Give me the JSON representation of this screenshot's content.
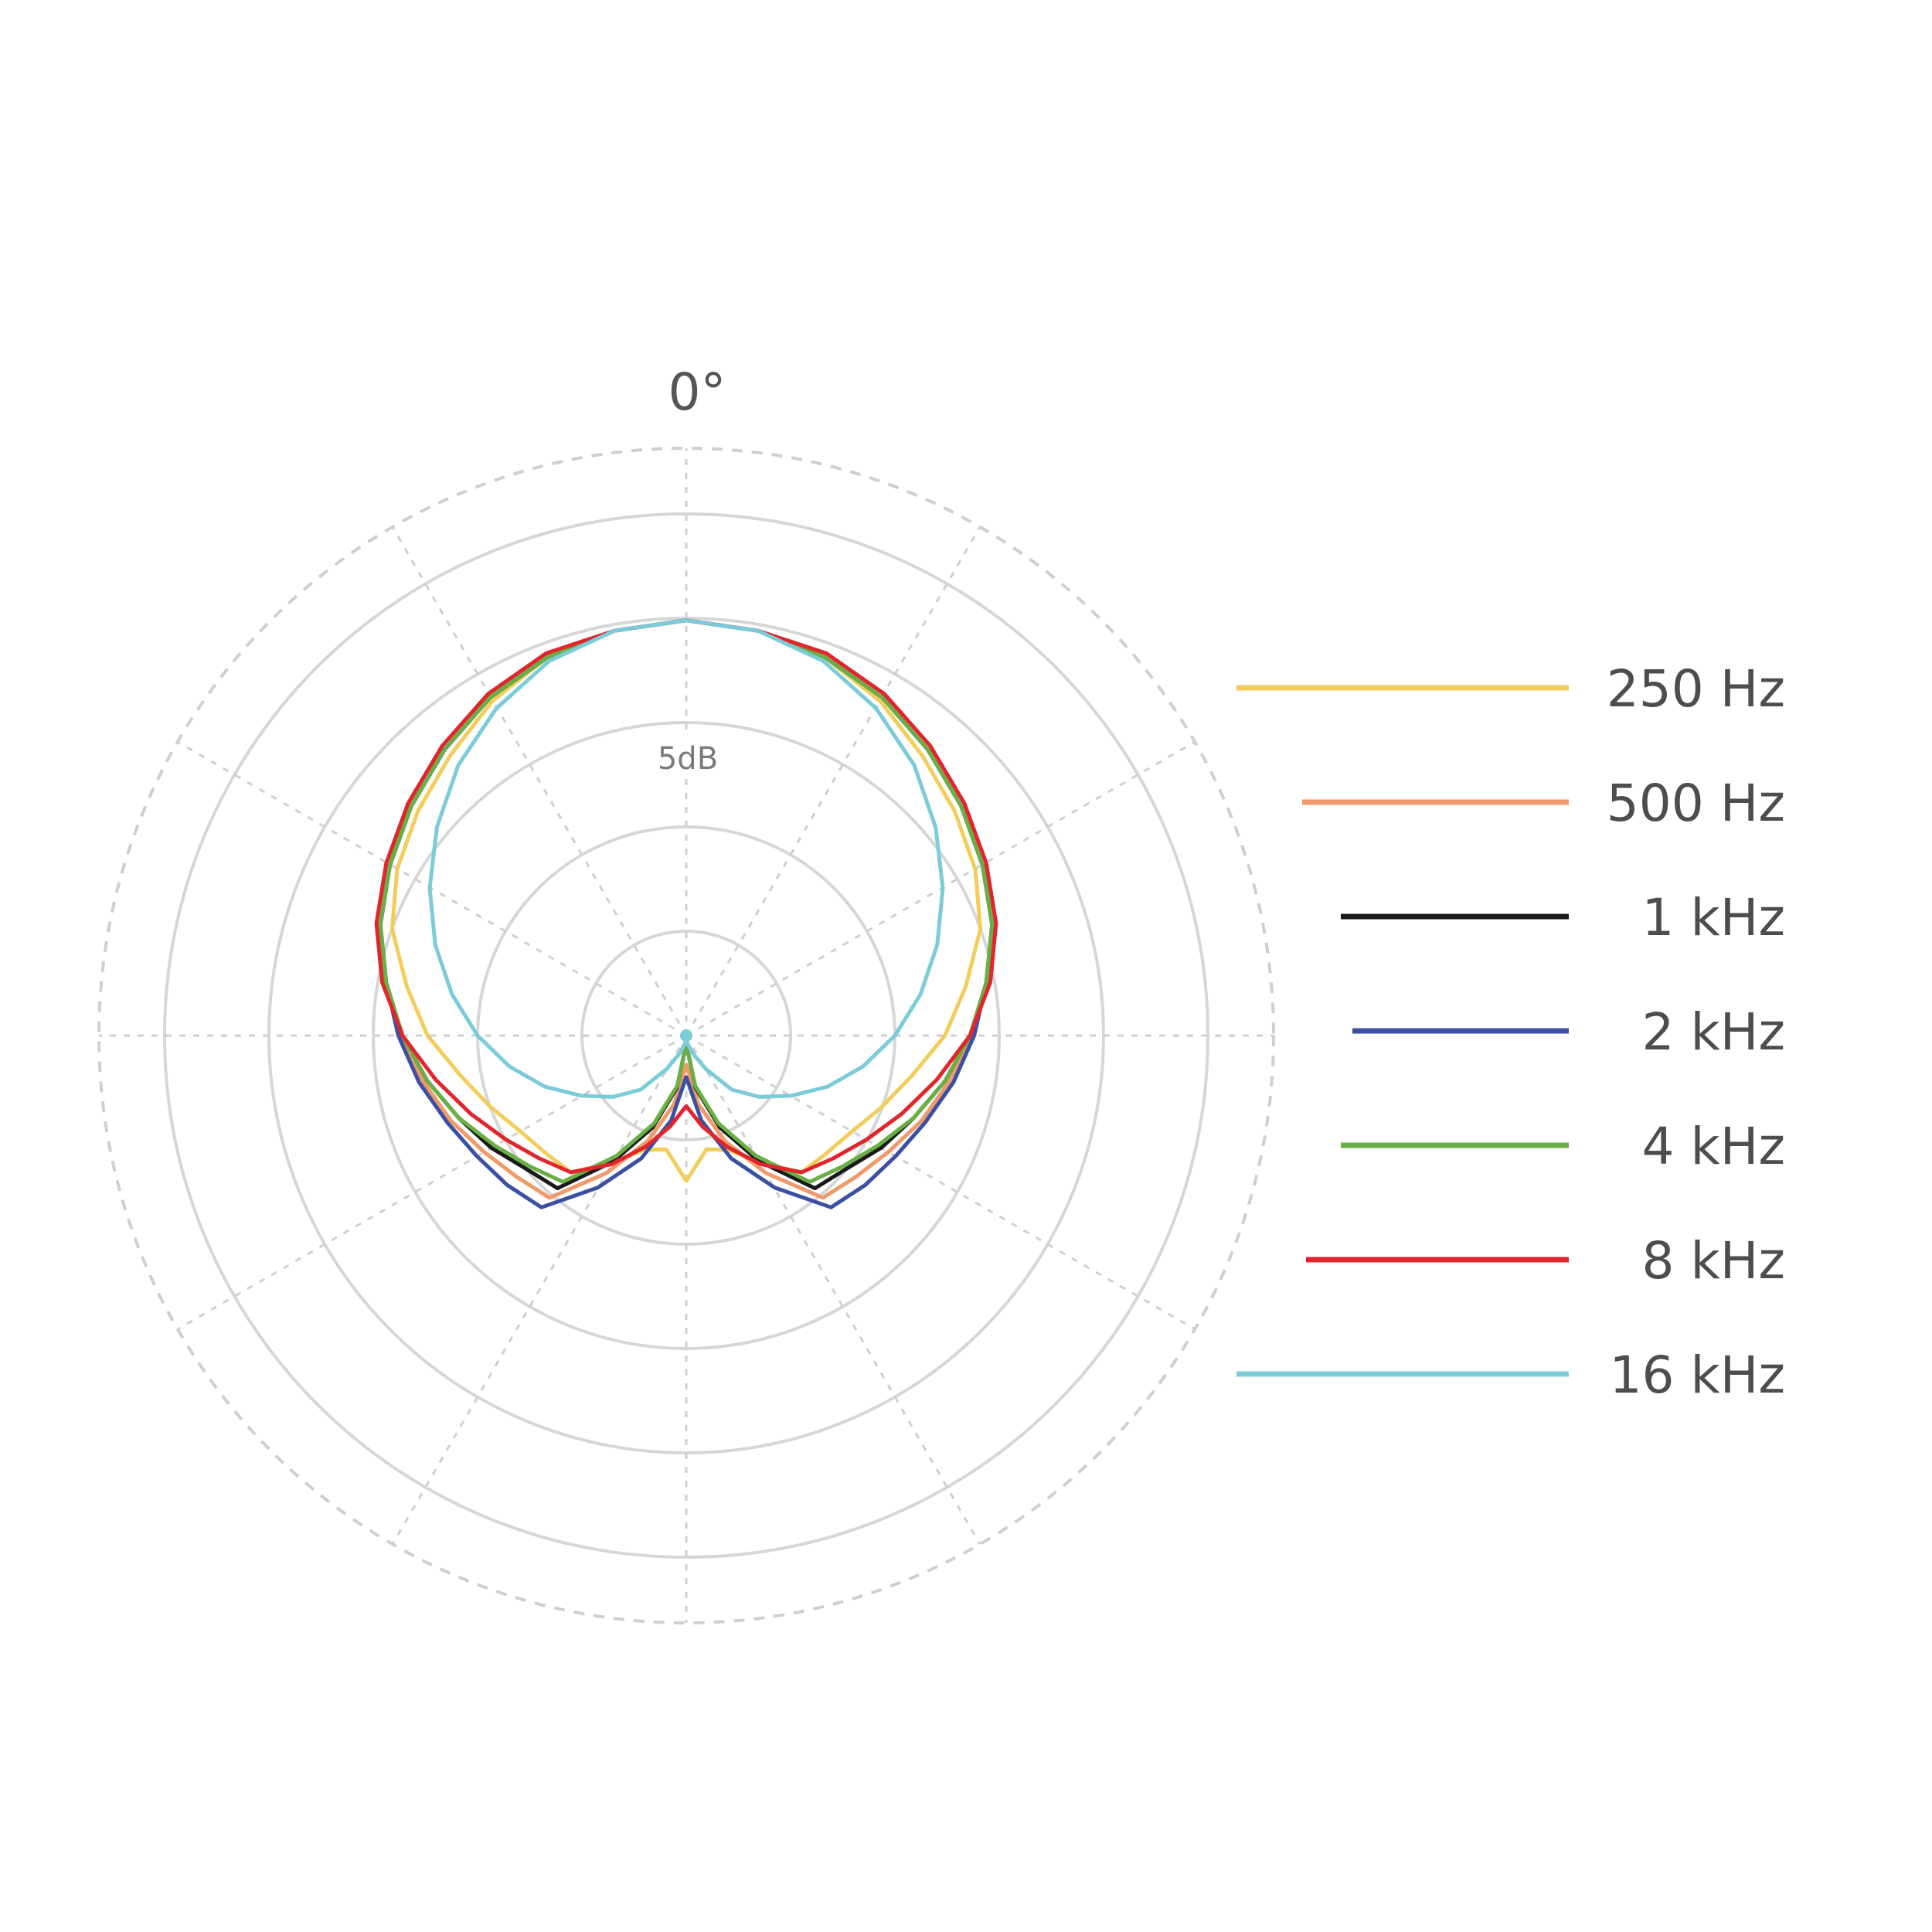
{
  "chart_data": {
    "type": "polar",
    "angle_label": "0°",
    "db_label": "5dB",
    "angle_unit": "degrees",
    "grid": true,
    "legend_placement": "right",
    "series": [
      {
        "name": "250 Hz",
        "color": "#f2cd5c",
        "r": [
          1.0,
          0.99,
          0.97,
          0.93,
          0.88,
          0.84,
          0.8,
          0.75,
          0.68,
          0.62,
          0.55,
          0.5,
          0.46,
          0.44,
          0.43,
          0.42,
          0.41,
          0.41,
          0.4,
          0.4,
          0.39,
          0.37,
          0.36,
          0.28,
          0.15,
          0.23,
          0.32,
          0.35
        ]
      },
      {
        "name": "500 Hz",
        "color": "#f0996a",
        "r": [
          1.0,
          0.99,
          0.97,
          0.94,
          0.9,
          0.86,
          0.82,
          0.78,
          0.73,
          0.69,
          0.64,
          0.6,
          0.56,
          0.53,
          0.51,
          0.49,
          0.48,
          0.48,
          0.47,
          0.46,
          0.44,
          0.41,
          0.37,
          0.3,
          0.2,
          0.1,
          0.06,
          0.07
        ]
      },
      {
        "name": "1 kHz",
        "color": "#1a1a1a",
        "r": [
          1.0,
          0.99,
          0.97,
          0.94,
          0.9,
          0.86,
          0.82,
          0.78,
          0.73,
          0.68,
          0.63,
          0.58,
          0.54,
          0.5,
          0.48,
          0.46,
          0.45,
          0.45,
          0.44,
          0.43,
          0.41,
          0.38,
          0.33,
          0.24,
          0.13,
          0.04,
          0.02,
          0.02
        ]
      },
      {
        "name": "2 kHz",
        "color": "#3b4fa3",
        "r": [
          1.0,
          0.99,
          0.97,
          0.94,
          0.9,
          0.86,
          0.82,
          0.78,
          0.73,
          0.69,
          0.65,
          0.61,
          0.58,
          0.56,
          0.54,
          0.53,
          0.53,
          0.53,
          0.52,
          0.51,
          0.48,
          0.44,
          0.38,
          0.3,
          0.2,
          0.12,
          0.1,
          0.1
        ]
      },
      {
        "name": "4 kHz",
        "color": "#6aaf44",
        "r": [
          1.0,
          0.99,
          0.97,
          0.94,
          0.9,
          0.86,
          0.82,
          0.78,
          0.73,
          0.68,
          0.63,
          0.58,
          0.53,
          0.49,
          0.46,
          0.44,
          0.43,
          0.43,
          0.42,
          0.41,
          0.39,
          0.35,
          0.29,
          0.21,
          0.11,
          0.03,
          0.02,
          0.02
        ]
      },
      {
        "name": "8 kHz",
        "color": "#e0262c",
        "r": [
          1.0,
          0.99,
          0.98,
          0.95,
          0.91,
          0.87,
          0.83,
          0.79,
          0.74,
          0.68,
          0.61,
          0.55,
          0.5,
          0.46,
          0.43,
          0.42,
          0.4,
          0.38,
          0.36,
          0.35,
          0.33,
          0.31,
          0.3,
          0.28,
          0.24,
          0.19,
          0.17,
          0.17
        ]
      },
      {
        "name": "16 kHz",
        "color": "#7ccbd8",
        "r": [
          1.0,
          0.99,
          0.96,
          0.91,
          0.85,
          0.78,
          0.71,
          0.64,
          0.57,
          0.5,
          0.43,
          0.36,
          0.29,
          0.23,
          0.17,
          0.12,
          0.08,
          0.05,
          0.03,
          0.02,
          0.01,
          0.01,
          0.01,
          0.01,
          0.01,
          0.01,
          0.01,
          0.01
        ]
      }
    ],
    "angles_deg": [
      0,
      10,
      20,
      30,
      40,
      50,
      60,
      70,
      80,
      90,
      100,
      110,
      120,
      130,
      140,
      150,
      160,
      170,
      180,
      190,
      200,
      210,
      220,
      230,
      240,
      250,
      260,
      270
    ]
  }
}
